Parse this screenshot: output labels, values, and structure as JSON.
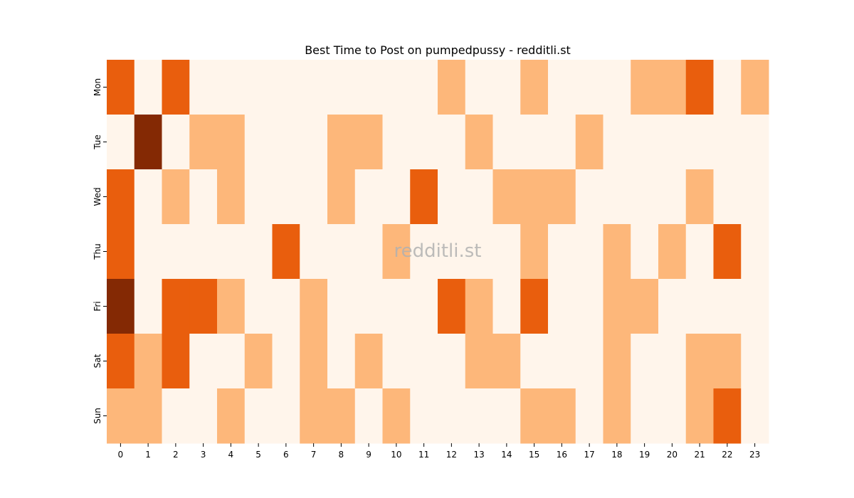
{
  "chart_data": {
    "type": "heatmap",
    "title": "Best Time to Post on pumpedpussy - redditli.st",
    "xlabel": "",
    "ylabel": "",
    "x_categories": [
      "0",
      "1",
      "2",
      "3",
      "4",
      "5",
      "6",
      "7",
      "8",
      "9",
      "10",
      "11",
      "12",
      "13",
      "14",
      "15",
      "16",
      "17",
      "18",
      "19",
      "20",
      "21",
      "22",
      "23"
    ],
    "y_categories": [
      "Mon",
      "Tue",
      "Wed",
      "Thu",
      "Fri",
      "Sat",
      "Sun"
    ],
    "values": [
      [
        2,
        0,
        2,
        0,
        0,
        0,
        0,
        0,
        0,
        0,
        0,
        0,
        1,
        0,
        0,
        1,
        0,
        0,
        0,
        1,
        1,
        2,
        0,
        1
      ],
      [
        0,
        3,
        0,
        1,
        1,
        0,
        0,
        0,
        1,
        1,
        0,
        0,
        0,
        1,
        0,
        0,
        0,
        1,
        0,
        0,
        0,
        0,
        0,
        0
      ],
      [
        2,
        0,
        1,
        0,
        1,
        0,
        0,
        0,
        1,
        0,
        0,
        2,
        0,
        0,
        1,
        1,
        1,
        0,
        0,
        0,
        0,
        1,
        0,
        0
      ],
      [
        2,
        0,
        0,
        0,
        0,
        0,
        2,
        0,
        0,
        0,
        1,
        0,
        0,
        0,
        0,
        1,
        0,
        0,
        1,
        0,
        1,
        0,
        2,
        0
      ],
      [
        3,
        0,
        2,
        2,
        1,
        0,
        0,
        1,
        0,
        0,
        0,
        0,
        2,
        1,
        0,
        2,
        0,
        0,
        1,
        1,
        0,
        0,
        0,
        0
      ],
      [
        2,
        1,
        2,
        0,
        0,
        1,
        0,
        1,
        0,
        1,
        0,
        0,
        0,
        1,
        1,
        0,
        0,
        0,
        1,
        0,
        0,
        1,
        1,
        0
      ],
      [
        1,
        1,
        0,
        0,
        1,
        0,
        0,
        1,
        1,
        0,
        1,
        0,
        0,
        0,
        0,
        1,
        1,
        0,
        1,
        0,
        0,
        1,
        2,
        0
      ]
    ],
    "color_scale": [
      "#fff5eb",
      "#fdb77a",
      "#e95e0d",
      "#842904"
    ],
    "watermark": "redditli.st"
  }
}
